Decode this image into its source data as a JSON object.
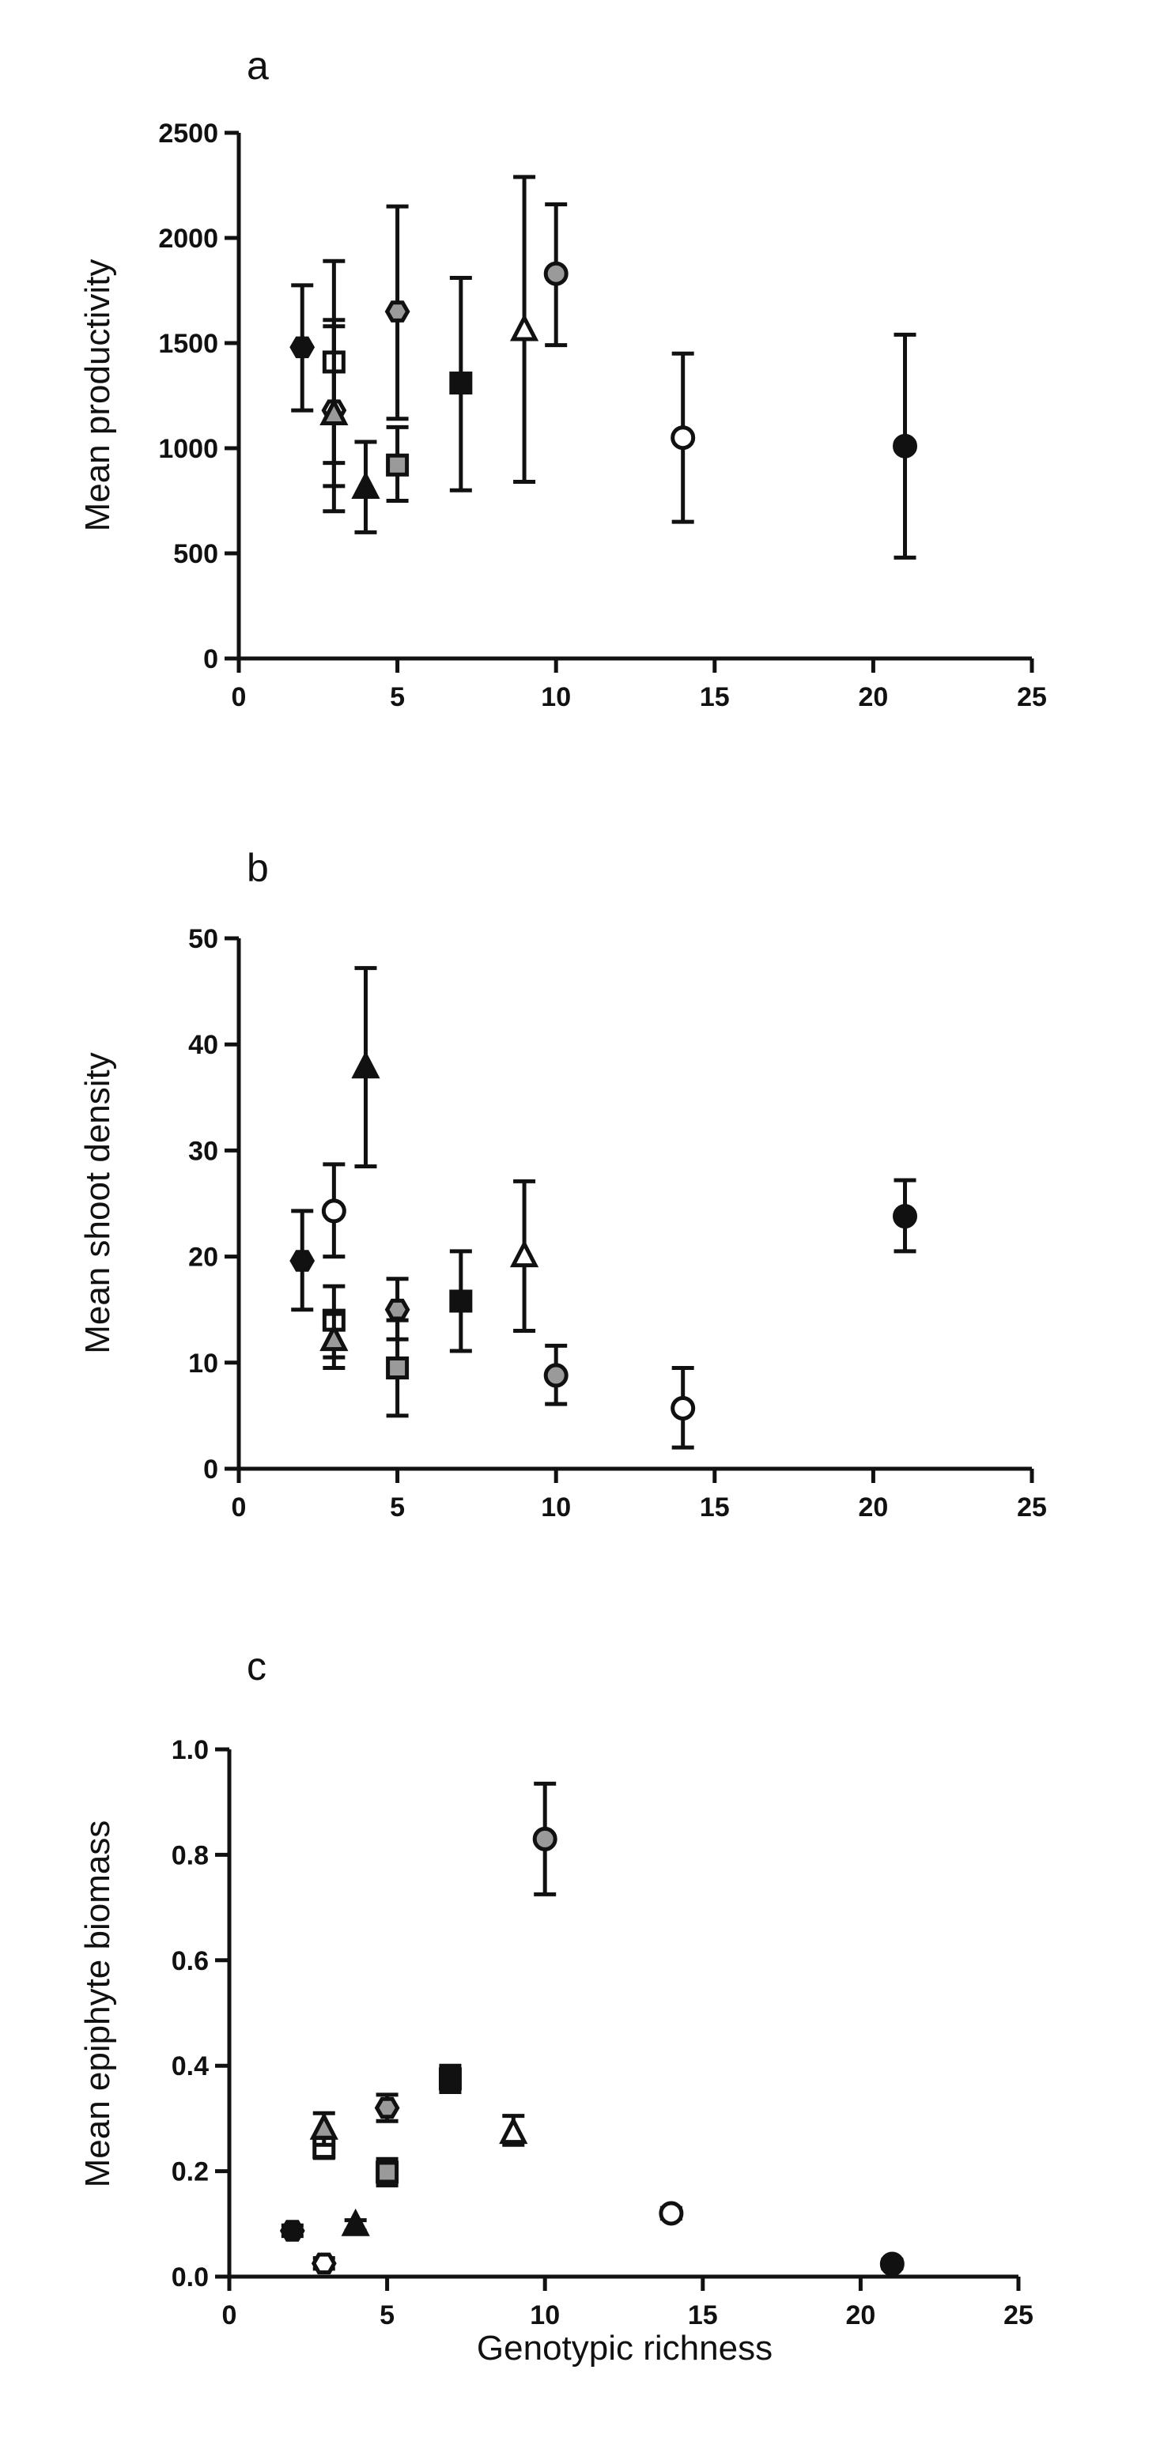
{
  "colors": {
    "black": "#111111",
    "gray": "#9a9a9a",
    "white": "#ffffff",
    "axis": "#111111"
  },
  "chart_data": [
    {
      "type": "scatter",
      "panel_label": "a",
      "ylabel": "Mean productivity",
      "xlabel": "",
      "xlim": [
        0,
        25
      ],
      "ylim": [
        0,
        2500
      ],
      "xticks": [
        0,
        5,
        10,
        15,
        20,
        25
      ],
      "yticks": [
        0,
        500,
        1000,
        1500,
        2000,
        2500
      ],
      "xtick_labels": [
        "0",
        "5",
        "10",
        "15",
        "20",
        "25"
      ],
      "ytick_labels": [
        "0",
        "500",
        "1000",
        "1500",
        "2000",
        "2500"
      ],
      "grid": false,
      "points": [
        {
          "x": 2,
          "y": 1480,
          "err_low": 1180,
          "err_high": 1775,
          "marker": "hexagon",
          "fill": "black"
        },
        {
          "x": 3,
          "y": 1410,
          "err_low": 930,
          "err_high": 1890,
          "marker": "square",
          "fill": "white"
        },
        {
          "x": 3,
          "y": 1180,
          "err_low": 700,
          "err_high": 1610,
          "marker": "hexagon",
          "fill": "white"
        },
        {
          "x": 3,
          "y": 1160,
          "err_low": 820,
          "err_high": 1580,
          "marker": "triangle",
          "fill": "gray"
        },
        {
          "x": 4,
          "y": 810,
          "err_low": 600,
          "err_high": 1030,
          "marker": "triangle",
          "fill": "black"
        },
        {
          "x": 5,
          "y": 1650,
          "err_low": 1140,
          "err_high": 2150,
          "marker": "hexagon",
          "fill": "gray"
        },
        {
          "x": 5,
          "y": 920,
          "err_low": 750,
          "err_high": 1100,
          "marker": "square",
          "fill": "gray"
        },
        {
          "x": 7,
          "y": 1310,
          "err_low": 800,
          "err_high": 1810,
          "marker": "square",
          "fill": "black"
        },
        {
          "x": 9,
          "y": 1560,
          "err_low": 840,
          "err_high": 2290,
          "marker": "triangle",
          "fill": "white"
        },
        {
          "x": 10,
          "y": 1830,
          "err_low": 1490,
          "err_high": 2160,
          "marker": "circle",
          "fill": "gray"
        },
        {
          "x": 14,
          "y": 1050,
          "err_low": 650,
          "err_high": 1450,
          "marker": "circle",
          "fill": "white"
        },
        {
          "x": 21,
          "y": 1010,
          "err_low": 480,
          "err_high": 1540,
          "marker": "circle",
          "fill": "black"
        }
      ]
    },
    {
      "type": "scatter",
      "panel_label": "b",
      "ylabel": "Mean shoot density",
      "xlabel": "",
      "xlim": [
        0,
        25
      ],
      "ylim": [
        0,
        50
      ],
      "xticks": [
        0,
        5,
        10,
        15,
        20,
        25
      ],
      "yticks": [
        0,
        10,
        20,
        30,
        40,
        50
      ],
      "xtick_labels": [
        "0",
        "5",
        "10",
        "15",
        "20",
        "25"
      ],
      "ytick_labels": [
        "0",
        "10",
        "20",
        "30",
        "40",
        "50"
      ],
      "grid": false,
      "points": [
        {
          "x": 2,
          "y": 19.6,
          "err_low": 15.0,
          "err_high": 24.3,
          "marker": "hexagon",
          "fill": "black"
        },
        {
          "x": 3,
          "y": 24.3,
          "err_low": 20.0,
          "err_high": 28.7,
          "marker": "circle",
          "fill": "white"
        },
        {
          "x": 3,
          "y": 14.0,
          "err_low": 10.5,
          "err_high": 17.2,
          "marker": "square",
          "fill": "white"
        },
        {
          "x": 3,
          "y": 12.1,
          "err_low": 9.5,
          "err_high": 14.6,
          "marker": "triangle",
          "fill": "gray"
        },
        {
          "x": 4,
          "y": 37.8,
          "err_low": 28.5,
          "err_high": 47.2,
          "marker": "triangle",
          "fill": "black"
        },
        {
          "x": 5,
          "y": 15.0,
          "err_low": 12.2,
          "err_high": 17.9,
          "marker": "hexagon",
          "fill": "gray"
        },
        {
          "x": 5,
          "y": 9.5,
          "err_low": 5.0,
          "err_high": 14.0,
          "marker": "square",
          "fill": "gray"
        },
        {
          "x": 7,
          "y": 15.8,
          "err_low": 11.1,
          "err_high": 20.5,
          "marker": "square",
          "fill": "black"
        },
        {
          "x": 9,
          "y": 20.0,
          "err_low": 13.0,
          "err_high": 27.1,
          "marker": "triangle",
          "fill": "white"
        },
        {
          "x": 10,
          "y": 8.8,
          "err_low": 6.1,
          "err_high": 11.6,
          "marker": "circle",
          "fill": "gray"
        },
        {
          "x": 14,
          "y": 5.7,
          "err_low": 2.0,
          "err_high": 9.5,
          "marker": "circle",
          "fill": "white"
        },
        {
          "x": 21,
          "y": 23.8,
          "err_low": 20.5,
          "err_high": 27.2,
          "marker": "circle",
          "fill": "black"
        }
      ]
    },
    {
      "type": "scatter",
      "panel_label": "c",
      "ylabel": "Mean epiphyte biomass",
      "xlabel": "Genotypic richness",
      "xlim": [
        0,
        25
      ],
      "ylim": [
        0,
        1.0
      ],
      "xticks": [
        0,
        5,
        10,
        15,
        20,
        25
      ],
      "yticks": [
        0,
        0.2,
        0.4,
        0.6,
        0.8,
        1.0
      ],
      "xtick_labels": [
        "0",
        "5",
        "10",
        "15",
        "20",
        "25"
      ],
      "ytick_labels": [
        "0.0",
        "0.2",
        "0.4",
        "0.6",
        "0.8",
        "1.0"
      ],
      "grid": false,
      "points": [
        {
          "x": 2,
          "y": 0.087,
          "err_low": 0.077,
          "err_high": 0.097,
          "marker": "hexagon",
          "fill": "black"
        },
        {
          "x": 3,
          "y": 0.245,
          "err_low": 0.225,
          "err_high": 0.265,
          "marker": "square",
          "fill": "white"
        },
        {
          "x": 3,
          "y": 0.28,
          "err_low": 0.25,
          "err_high": 0.31,
          "marker": "triangle",
          "fill": "gray"
        },
        {
          "x": 3,
          "y": 0.025,
          "err_low": 0.015,
          "err_high": 0.035,
          "marker": "hexagon",
          "fill": "white"
        },
        {
          "x": 4,
          "y": 0.097,
          "err_low": 0.087,
          "err_high": 0.107,
          "marker": "triangle",
          "fill": "black"
        },
        {
          "x": 5,
          "y": 0.32,
          "err_low": 0.295,
          "err_high": 0.345,
          "marker": "hexagon",
          "fill": "gray"
        },
        {
          "x": 5,
          "y": 0.198,
          "err_low": 0.173,
          "err_high": 0.223,
          "marker": "square",
          "fill": "gray"
        },
        {
          "x": 7,
          "y": 0.375,
          "err_low": 0.35,
          "err_high": 0.4,
          "marker": "square",
          "fill": "black"
        },
        {
          "x": 9,
          "y": 0.272,
          "err_low": 0.25,
          "err_high": 0.305,
          "marker": "triangle",
          "fill": "white"
        },
        {
          "x": 10,
          "y": 0.83,
          "err_low": 0.725,
          "err_high": 0.935,
          "marker": "circle",
          "fill": "gray"
        },
        {
          "x": 14,
          "y": 0.12,
          "err_low": 0.11,
          "err_high": 0.13,
          "marker": "circle",
          "fill": "white"
        },
        {
          "x": 21,
          "y": 0.024,
          "err_low": 0.016,
          "err_high": 0.032,
          "marker": "circle",
          "fill": "black"
        }
      ]
    }
  ]
}
